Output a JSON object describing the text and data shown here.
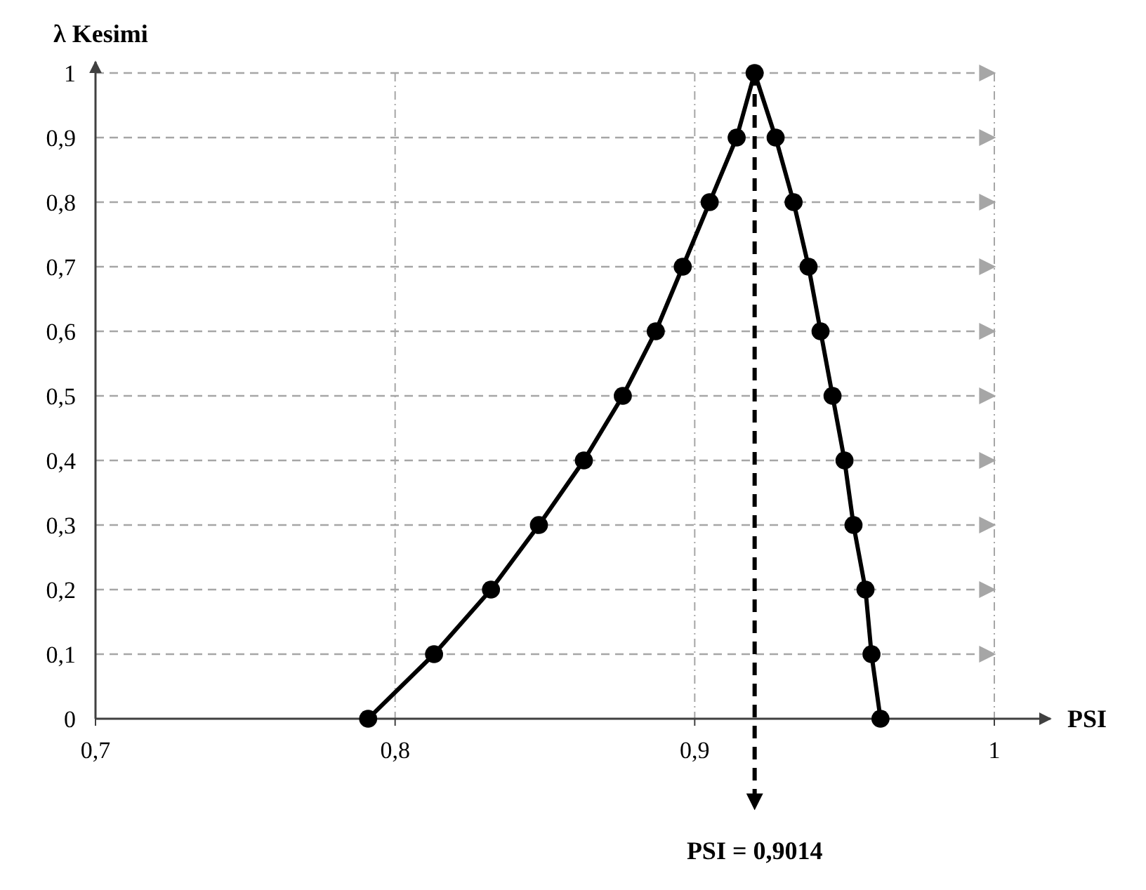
{
  "chart_data": {
    "type": "line",
    "xlabel": "PSI",
    "ylabel": "λ Kesimi",
    "xlim": [
      0.7,
      1
    ],
    "ylim": [
      0,
      1
    ],
    "xticks": [
      {
        "value": 0.7,
        "label": "0,7"
      },
      {
        "value": 0.8,
        "label": "0,8"
      },
      {
        "value": 0.9,
        "label": "0,9"
      },
      1
    ],
    "yticks": [
      0,
      {
        "value": 0.1,
        "label": "0,1"
      },
      {
        "value": 0.2,
        "label": "0,2"
      },
      {
        "value": 0.3,
        "label": "0,3"
      },
      {
        "value": 0.4,
        "label": "0,4"
      },
      {
        "value": 0.5,
        "label": "0,5"
      },
      {
        "value": 0.6,
        "label": "0,6"
      },
      {
        "value": 0.7,
        "label": "0,7"
      },
      {
        "value": 0.8,
        "label": "0,8"
      },
      {
        "value": 0.9,
        "label": "0,9"
      },
      1
    ],
    "grid": true,
    "marker": "circle",
    "line_style": "solid",
    "series": [
      {
        "color": "#000000",
        "x": [
          0.791,
          0.813,
          0.832,
          0.848,
          0.863,
          0.876,
          0.887,
          0.896,
          0.905,
          0.914,
          0.92,
          0.927,
          0.933,
          0.938,
          0.942,
          0.946,
          0.95,
          0.953,
          0.957,
          0.959,
          0.962
        ],
        "values": [
          0,
          0.1,
          0.2,
          0.3,
          0.4,
          0.5,
          0.6,
          0.7,
          0.8,
          0.9,
          1,
          0.9,
          0.8,
          0.7,
          0.6,
          0.5,
          0.4,
          0.3,
          0.2,
          0.1,
          0
        ]
      }
    ],
    "ref_lines": [
      {
        "axis": "x",
        "value": 0.92,
        "color": "#000000",
        "line_style": "dashed"
      }
    ],
    "annotations": [
      "PSI = 0,9014"
    ]
  }
}
